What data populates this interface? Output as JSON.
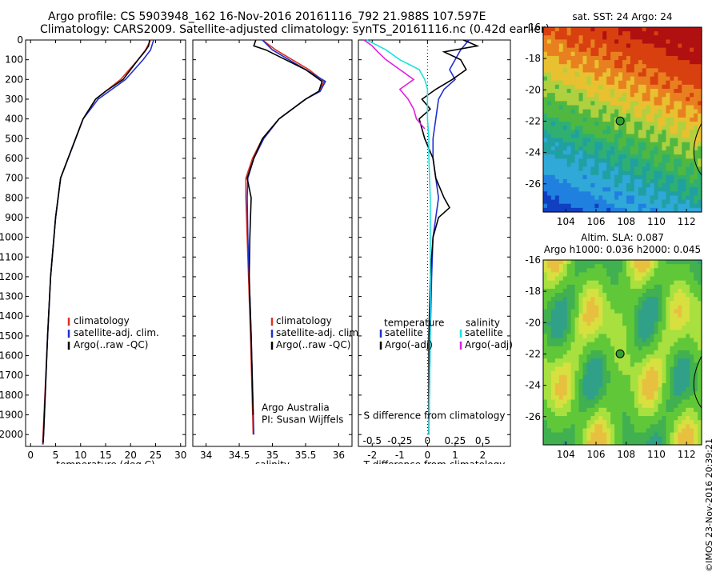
{
  "header": {
    "line1": "Argo profile: CS 5903948_162 16-Nov-2016 20161116_792 21.988S 107.597E",
    "line2": "Climatology: CARS2009. Satellite-adjusted climatology: synTS_20161116.nc (0.42d earlier)"
  },
  "credit": "©IMOS 23-Nov-2016 20:39:21",
  "colors": {
    "climatology": "#e03020",
    "satellite": "#2030d0",
    "argo": "#000000",
    "sat_sal": "#20e0e0",
    "argo_sal_adj": "#e020e0",
    "marker": "#30a030"
  },
  "chart_data": [
    {
      "type": "line",
      "id": "temperature",
      "xlabel": "temperature (deg C)",
      "ylabel": "",
      "xlim": [
        -1,
        31
      ],
      "ylim": [
        2060,
        0
      ],
      "xticks": [
        0,
        5,
        10,
        15,
        20,
        25,
        30
      ],
      "yticks": [
        0,
        100,
        200,
        300,
        400,
        500,
        600,
        700,
        800,
        900,
        1000,
        1100,
        1200,
        1300,
        1400,
        1500,
        1600,
        1700,
        1800,
        1900,
        2000
      ],
      "legend": [
        "climatology",
        "satellite-adj. clim.",
        "Argo(..raw -QC)"
      ],
      "series": [
        {
          "name": "climatology",
          "depth": [
            0,
            50,
            100,
            200,
            300,
            400,
            500,
            600,
            700,
            900,
            1200,
            1500,
            2000,
            2050
          ],
          "values": [
            24,
            23,
            21.5,
            18,
            13,
            10.5,
            9,
            7.5,
            6,
            5,
            4,
            3.4,
            2.5,
            2.4
          ]
        },
        {
          "name": "satellite-adj. clim.",
          "depth": [
            0,
            50,
            100,
            200,
            300,
            400,
            500,
            600,
            700,
            900,
            1200,
            1500,
            2000,
            2050
          ],
          "values": [
            24.6,
            24,
            22.5,
            19,
            13.5,
            10.5,
            9,
            7.5,
            6,
            5,
            4,
            3.4,
            2.6,
            2.5
          ]
        },
        {
          "name": "Argo(..raw -QC)",
          "depth": [
            0,
            30,
            60,
            100,
            150,
            200,
            260,
            300,
            400,
            500,
            600,
            700,
            900,
            1200,
            1500,
            2000,
            2040
          ],
          "values": [
            23.8,
            23.6,
            22.8,
            21.5,
            20,
            18.5,
            15,
            13,
            10.5,
            9,
            7.5,
            6,
            5,
            4,
            3.4,
            2.6,
            2.5
          ]
        }
      ]
    },
    {
      "type": "line",
      "id": "salinity",
      "xlabel": "salinity",
      "xlim": [
        33.8,
        36.2
      ],
      "ylim": [
        2060,
        0
      ],
      "xticks": [
        34,
        34.5,
        35,
        35.5,
        36
      ],
      "legend": [
        "climatology",
        "satellite-adj. clim.",
        "Argo(..raw -QC)"
      ],
      "annotation": [
        "Argo Australia",
        "PI: Susan Wijffels"
      ],
      "series": [
        {
          "name": "climatology",
          "depth": [
            0,
            50,
            100,
            150,
            210,
            260,
            300,
            400,
            500,
            600,
            700,
            800,
            1000,
            1200,
            1500,
            2000
          ],
          "values": [
            34.85,
            35.05,
            35.3,
            35.55,
            35.78,
            35.7,
            35.5,
            35.1,
            34.85,
            34.7,
            34.6,
            34.6,
            34.62,
            34.64,
            34.67,
            34.71
          ]
        },
        {
          "name": "satellite-adj. clim.",
          "depth": [
            0,
            50,
            100,
            150,
            210,
            260,
            300,
            400,
            500,
            600,
            700,
            800,
            1000,
            1200,
            1500,
            2000
          ],
          "values": [
            34.85,
            35.0,
            35.25,
            35.5,
            35.8,
            35.72,
            35.5,
            35.1,
            34.87,
            34.72,
            34.63,
            34.62,
            34.63,
            34.65,
            34.68,
            34.72
          ]
        },
        {
          "name": "Argo(..raw -QC)",
          "depth": [
            0,
            30,
            50,
            100,
            150,
            210,
            260,
            300,
            400,
            500,
            600,
            700,
            800,
            1000,
            1200,
            1500,
            1900
          ],
          "values": [
            34.75,
            34.72,
            34.9,
            35.2,
            35.5,
            35.75,
            35.7,
            35.5,
            35.1,
            34.85,
            34.72,
            34.62,
            34.68,
            34.66,
            34.65,
            34.68,
            34.71
          ]
        }
      ]
    },
    {
      "type": "line",
      "id": "differences",
      "xlabel": "T difference from climatology",
      "xlabel2": "S difference from climatology",
      "xlim": [
        -2.5,
        3
      ],
      "ylim": [
        2060,
        0
      ],
      "xticks": [
        -2,
        -1,
        0,
        1,
        2
      ],
      "xticks_top": [
        "-0.5",
        "-0.25",
        "0",
        "0.25",
        "0.5"
      ],
      "legend_temperature": {
        "title": "temperature",
        "items": [
          "satellite",
          "Argo(-adj)"
        ]
      },
      "legend_salinity": {
        "title": "salinity",
        "items": [
          "satellite",
          "Argo(-adj)"
        ]
      },
      "series": [
        {
          "name": "T satellite",
          "depth": [
            0,
            50,
            100,
            150,
            200,
            250,
            300,
            400,
            500,
            600,
            700,
            800,
            900,
            1000,
            1200,
            1500,
            2000
          ],
          "values": [
            1.5,
            1.2,
            1.0,
            0.8,
            1.0,
            0.6,
            0.4,
            0.3,
            0.2,
            0.2,
            0.3,
            0.4,
            0.3,
            0.2,
            0.15,
            0.1,
            0.05
          ]
        },
        {
          "name": "T Argo(-adj)",
          "depth": [
            0,
            30,
            60,
            100,
            150,
            200,
            250,
            300,
            350,
            400,
            500,
            600,
            700,
            800,
            850,
            900,
            1000,
            1200,
            1500,
            2000
          ],
          "values": [
            1.3,
            1.8,
            0.6,
            1.2,
            1.4,
            0.9,
            0.3,
            -0.2,
            0.1,
            -0.3,
            -0.1,
            0.2,
            0.3,
            0.6,
            0.8,
            0.4,
            0.2,
            0.1,
            0.05,
            0.05
          ]
        },
        {
          "name": "S satellite",
          "depth": [
            0,
            50,
            100,
            150,
            200,
            250,
            300,
            400,
            500,
            600,
            800,
            1000,
            1500,
            2000
          ],
          "values": [
            -2.2,
            -1.5,
            -1.0,
            -0.3,
            -0.1,
            0.0,
            0.0,
            0.0,
            0.05,
            0.05,
            0.1,
            0.1,
            0.1,
            0.05
          ]
        },
        {
          "name": "S Argo(-adj)",
          "depth": [
            0,
            30,
            60,
            100,
            150,
            200,
            250,
            300,
            350,
            400,
            450
          ],
          "values": [
            -2.3,
            -2.0,
            -1.8,
            -1.5,
            -1.0,
            -0.5,
            -1.0,
            -0.7,
            -0.5,
            -0.4,
            -0.1
          ]
        }
      ]
    },
    {
      "type": "heatmap",
      "id": "sst-map",
      "title": "sat. SST: 24 Argo: 24",
      "xlim": [
        102.5,
        113
      ],
      "ylim": [
        -27.8,
        -16
      ],
      "xticks": [
        104,
        106,
        108,
        110,
        112
      ],
      "yticks": [
        -16,
        -18,
        -20,
        -22,
        -24,
        -26
      ],
      "marker": {
        "lon": 107.597,
        "lat": -21.988
      }
    },
    {
      "type": "heatmap",
      "id": "sla-map",
      "title": "Altim. SLA: 0.087",
      "title2": "Argo h1000: 0.036 h2000: 0.045",
      "xlim": [
        102.5,
        113
      ],
      "ylim": [
        -27.8,
        -16
      ],
      "xticks": [
        104,
        106,
        108,
        110,
        112
      ],
      "yticks": [
        -16,
        -18,
        -20,
        -22,
        -24,
        -26
      ],
      "marker": {
        "lon": 107.597,
        "lat": -21.988
      }
    }
  ]
}
